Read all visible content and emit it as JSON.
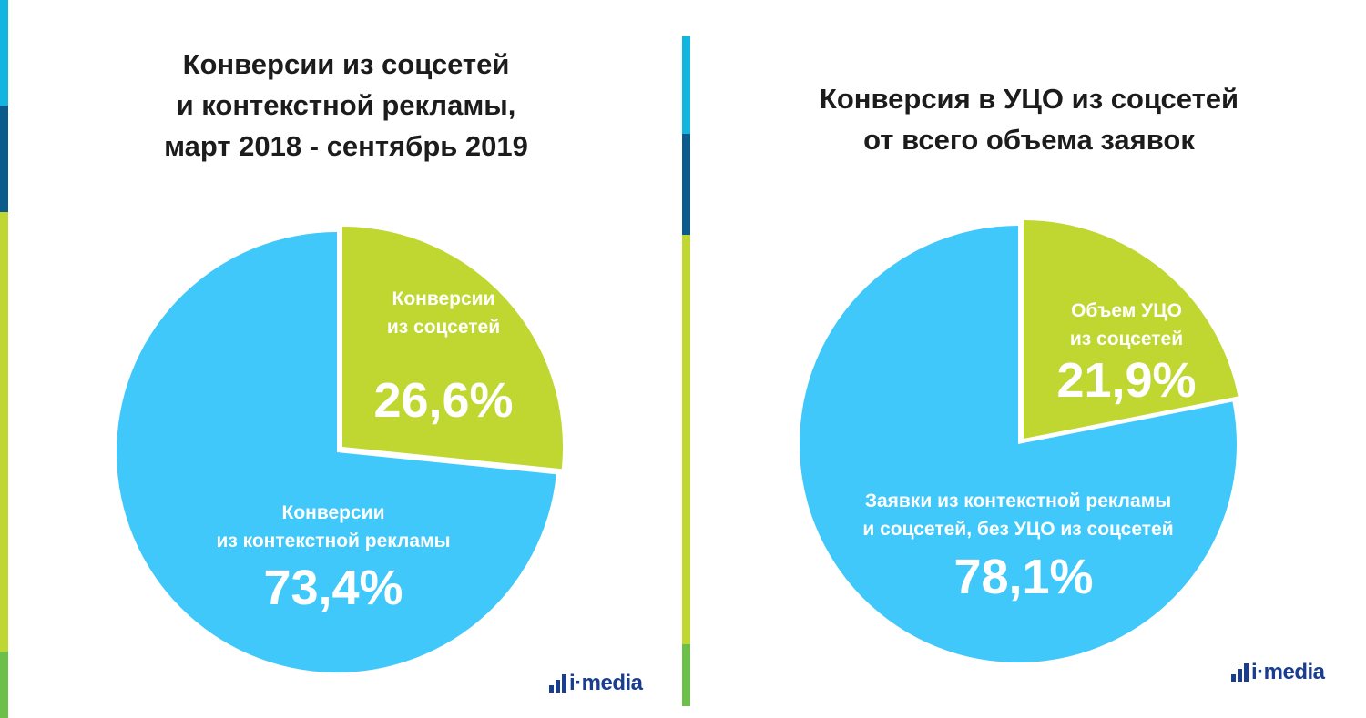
{
  "colors": {
    "blue": "#40c8fb",
    "green": "#bfd730",
    "accent_strip": [
      "#12b5e0",
      "#0b5a8c",
      "#bfd730",
      "#6cc04a"
    ]
  },
  "chart_data": [
    {
      "type": "pie",
      "title": "Конверсии из соцсетей и контекстной рекламы, март 2018 - сентябрь 2019",
      "title_lines": [
        "Конверсии из соцсетей",
        "и контекстной рекламы,",
        "март 2018 - сентябрь 2019"
      ],
      "slices": [
        {
          "label_lines": [
            "Конверсии",
            "из соцсетей"
          ],
          "value": 26.6,
          "value_label": "26,6%",
          "color": "#bfd730",
          "exploded": true
        },
        {
          "label_lines": [
            "Конверсии",
            "из контекстной рекламы"
          ],
          "value": 73.4,
          "value_label": "73,4%",
          "color": "#40c8fb",
          "exploded": false
        }
      ]
    },
    {
      "type": "pie",
      "title": "Конверсия в УЦО из соцсетей от всего объема заявок",
      "title_lines": [
        "Конверсия в УЦО из соцсетей",
        "от всего объема заявок"
      ],
      "slices": [
        {
          "label_lines": [
            "Объем УЦО",
            "из соцсетей"
          ],
          "value": 21.9,
          "value_label": "21,9%",
          "color": "#bfd730",
          "exploded": true
        },
        {
          "label_lines": [
            "Заявки из контекстной рекламы",
            "и соцсетей, без УЦО из соцсетей"
          ],
          "value": 78.1,
          "value_label": "78,1%",
          "color": "#40c8fb",
          "exploded": false
        }
      ]
    }
  ],
  "logo": {
    "text": "i·media",
    "icon": "bar-chart-logo-icon"
  }
}
